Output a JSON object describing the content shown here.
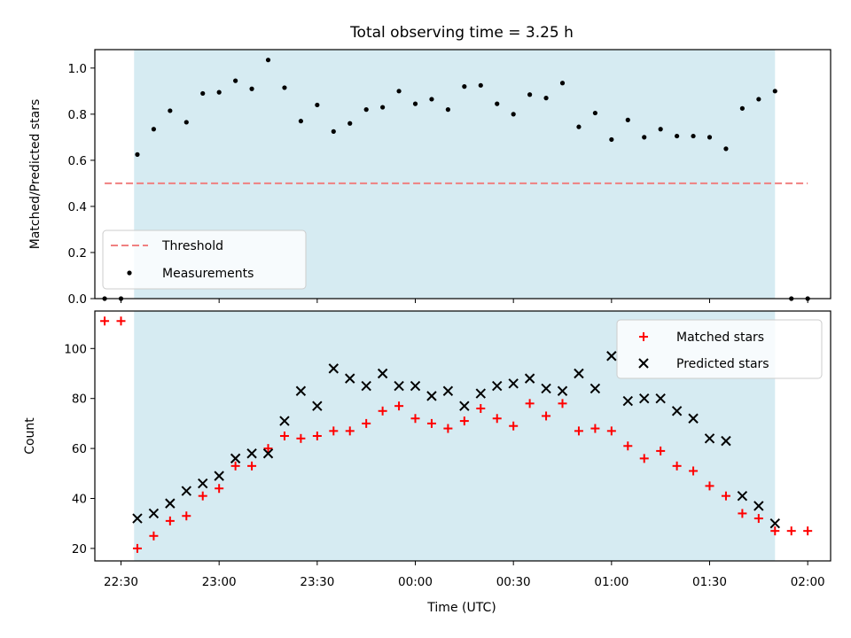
{
  "title": "Total observing time = 3.25 h",
  "colors": {
    "shade": "#add8e6",
    "threshold": "#f08080",
    "measurement": "#000000",
    "matched": "#ff0000",
    "predicted": "#000000"
  },
  "chart_data": [
    {
      "type": "scatter",
      "ylabel": "Matched/Predicted stars",
      "xlim": [
        "22:22",
        "02:07"
      ],
      "ylim": [
        0,
        1.08
      ],
      "yticks": [
        "0.0",
        "0.2",
        "0.4",
        "0.6",
        "0.8",
        "1.0"
      ],
      "shaded_region": [
        "22:34",
        "01:50"
      ],
      "threshold": {
        "label": "Threshold",
        "value": 0.5,
        "x_range": [
          "22:25",
          "02:00"
        ]
      },
      "legend": {
        "location": "lower-left",
        "entries": [
          "Threshold",
          "Measurements"
        ]
      },
      "series": [
        {
          "name": "Measurements",
          "x": [
            "22:25",
            "22:30",
            "22:35",
            "22:40",
            "22:45",
            "22:50",
            "22:55",
            "23:00",
            "23:05",
            "23:10",
            "23:15",
            "23:20",
            "23:25",
            "23:30",
            "23:35",
            "23:40",
            "23:45",
            "23:50",
            "23:55",
            "00:00",
            "00:05",
            "00:10",
            "00:15",
            "00:20",
            "00:25",
            "00:30",
            "00:35",
            "00:40",
            "00:45",
            "00:50",
            "00:55",
            "01:00",
            "01:05",
            "01:10",
            "01:15",
            "01:20",
            "01:25",
            "01:30",
            "01:35",
            "01:40",
            "01:45",
            "01:50",
            "01:55",
            "02:00"
          ],
          "y": [
            0.0,
            0.0,
            0.625,
            0.735,
            0.815,
            0.765,
            0.89,
            0.895,
            0.945,
            0.91,
            1.035,
            0.915,
            0.77,
            0.84,
            0.725,
            0.76,
            0.82,
            0.83,
            0.9,
            0.845,
            0.865,
            0.82,
            0.92,
            0.925,
            0.845,
            0.8,
            0.885,
            0.87,
            0.935,
            0.745,
            0.805,
            0.69,
            0.775,
            0.7,
            0.735,
            0.705,
            0.705,
            0.7,
            0.65,
            0.825,
            0.865,
            0.9,
            0.0,
            0.0
          ]
        }
      ]
    },
    {
      "type": "scatter",
      "xlabel": "Time (UTC)",
      "ylabel": "Count",
      "xlim": [
        "22:22",
        "02:07"
      ],
      "ylim": [
        15,
        115
      ],
      "xticks": [
        "22:30",
        "23:00",
        "23:30",
        "00:00",
        "00:30",
        "01:00",
        "01:30",
        "02:00"
      ],
      "yticks": [
        "20",
        "40",
        "60",
        "80",
        "100"
      ],
      "shaded_region": [
        "22:34",
        "01:50"
      ],
      "legend": {
        "location": "upper-right",
        "entries": [
          "Matched stars",
          "Predicted stars"
        ]
      },
      "series": [
        {
          "name": "Matched stars",
          "marker": "+",
          "x": [
            "22:25",
            "22:30",
            "22:35",
            "22:40",
            "22:45",
            "22:50",
            "22:55",
            "23:00",
            "23:05",
            "23:10",
            "23:15",
            "23:20",
            "23:25",
            "23:30",
            "23:35",
            "23:40",
            "23:45",
            "23:50",
            "23:55",
            "00:00",
            "00:05",
            "00:10",
            "00:15",
            "00:20",
            "00:25",
            "00:30",
            "00:35",
            "00:40",
            "00:45",
            "00:50",
            "00:55",
            "01:00",
            "01:05",
            "01:10",
            "01:15",
            "01:20",
            "01:25",
            "01:30",
            "01:35",
            "01:40",
            "01:45",
            "01:50",
            "01:55",
            "02:00"
          ],
          "y": [
            111,
            111,
            20,
            25,
            31,
            33,
            41,
            44,
            53,
            53,
            60,
            65,
            64,
            65,
            67,
            67,
            70,
            75,
            77,
            72,
            70,
            68,
            71,
            76,
            72,
            69,
            78,
            73,
            78,
            67,
            68,
            67,
            61,
            56,
            59,
            53,
            51,
            45,
            41,
            34,
            32,
            27,
            27,
            27
          ]
        },
        {
          "name": "Predicted stars",
          "marker": "x",
          "x": [
            "22:35",
            "22:40",
            "22:45",
            "22:50",
            "22:55",
            "23:00",
            "23:05",
            "23:10",
            "23:15",
            "23:20",
            "23:25",
            "23:30",
            "23:35",
            "23:40",
            "23:45",
            "23:50",
            "23:55",
            "00:00",
            "00:05",
            "00:10",
            "00:15",
            "00:20",
            "00:25",
            "00:30",
            "00:35",
            "00:40",
            "00:45",
            "00:50",
            "00:55",
            "01:00",
            "01:05",
            "01:10",
            "01:15",
            "01:20",
            "01:25",
            "01:30",
            "01:35",
            "01:40",
            "01:45",
            "01:50"
          ],
          "y": [
            32,
            34,
            38,
            43,
            46,
            49,
            56,
            58,
            58,
            71,
            83,
            77,
            92,
            88,
            85,
            90,
            85,
            85,
            81,
            83,
            77,
            82,
            85,
            86,
            88,
            84,
            83,
            90,
            84,
            97,
            79,
            80,
            80,
            75,
            72,
            64,
            63,
            41,
            37,
            30
          ]
        }
      ]
    }
  ]
}
